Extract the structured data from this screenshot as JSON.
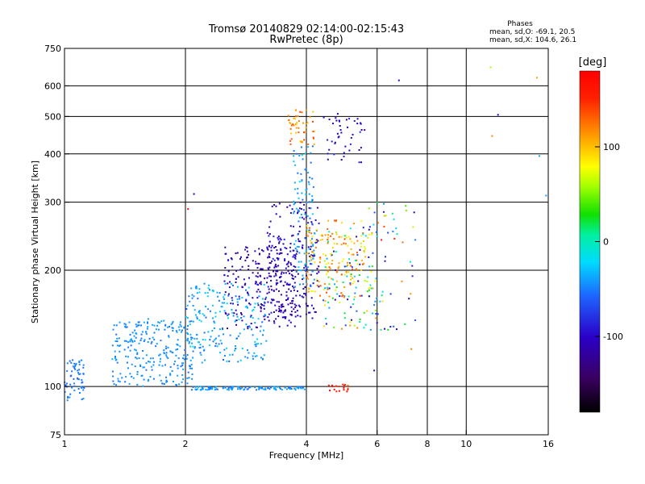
{
  "chart_data": {
    "type": "scatter",
    "title": "Tromsø 20140829 02:14:00-02:15:43",
    "subtitle": "RwPretec (8p)",
    "xlabel": "Frequency [MHz]",
    "ylabel": "Stationary phase Virtual Height [km]",
    "x_scale": "log",
    "y_scale": "log",
    "xlim": [
      1,
      16
    ],
    "ylim": [
      75,
      750
    ],
    "x_ticks": [
      1,
      2,
      4,
      6,
      8,
      10,
      16
    ],
    "y_ticks": [
      75,
      100,
      200,
      300,
      400,
      500,
      600,
      750
    ],
    "x_tick_labels": [
      "1",
      "2",
      "4",
      "6",
      "8",
      "10",
      "16"
    ],
    "y_tick_labels": [
      "75",
      "100",
      "200",
      "300",
      "400",
      "500",
      "600",
      "750"
    ],
    "grid": true,
    "grid_x": [
      2,
      4,
      6,
      8,
      10
    ],
    "grid_y": [
      100,
      200,
      300,
      400,
      500,
      600
    ],
    "phases_box": {
      "title": "Phases",
      "line_o": "mean, sd,O: -69.1, 20.5",
      "line_x": "mean, sd,X: 104.6, 26.1"
    },
    "colorbar": {
      "label": "[deg]",
      "range": [
        -180,
        180
      ],
      "ticks": [
        100,
        0,
        -100
      ],
      "tick_labels": [
        "100",
        "0",
        "-100"
      ]
    },
    "clusters": [
      {
        "f": [
          1.0,
          1.12
        ],
        "h": [
          92,
          118
        ],
        "phase": [
          -60,
          -40
        ],
        "n": 60
      },
      {
        "f": [
          1.3,
          2.1
        ],
        "h": [
          100,
          150
        ],
        "phase": [
          -55,
          -35
        ],
        "n": 260
      },
      {
        "f": [
          2.0,
          3.2
        ],
        "h": [
          115,
          185
        ],
        "phase": [
          -60,
          -20
        ],
        "n": 220
      },
      {
        "f": [
          2.5,
          3.8
        ],
        "h": [
          140,
          230
        ],
        "phase": [
          -130,
          -90
        ],
        "n": 230
      },
      {
        "f": [
          3.2,
          4.3
        ],
        "h": [
          150,
          300
        ],
        "phase": [
          -125,
          -85
        ],
        "n": 200
      },
      {
        "f": [
          3.7,
          4.2
        ],
        "h": [
          180,
          420
        ],
        "phase": [
          -60,
          -20
        ],
        "n": 110
      },
      {
        "f": [
          4.0,
          5.6
        ],
        "h": [
          170,
          270
        ],
        "phase": [
          70,
          140
        ],
        "n": 140
      },
      {
        "f": [
          4.4,
          6.0
        ],
        "h": [
          140,
          260
        ],
        "phase": [
          -120,
          120
        ],
        "n": 120
      },
      {
        "f": [
          3.6,
          4.2
        ],
        "h": [
          420,
          520
        ],
        "phase": [
          90,
          150
        ],
        "n": 50
      },
      {
        "f": [
          4.4,
          5.6
        ],
        "h": [
          380,
          510
        ],
        "phase": [
          -120,
          -80
        ],
        "n": 45
      },
      {
        "f": [
          2.0,
          4.0
        ],
        "h": [
          98,
          100
        ],
        "phase": [
          -60,
          -30
        ],
        "n": 120
      },
      {
        "f": [
          4.5,
          5.1
        ],
        "h": [
          97,
          102
        ],
        "phase": [
          140,
          170
        ],
        "n": 18
      },
      {
        "f": [
          5.6,
          7.5
        ],
        "h": [
          140,
          300
        ],
        "phase": [
          -120,
          160
        ],
        "n": 60
      }
    ],
    "extra_points": [
      {
        "f": 2.1,
        "h": 315,
        "phase": -120
      },
      {
        "f": 2.03,
        "h": 288,
        "phase": 170
      },
      {
        "f": 6.8,
        "h": 620,
        "phase": -100
      },
      {
        "f": 11.5,
        "h": 670,
        "phase": 60
      },
      {
        "f": 12.0,
        "h": 505,
        "phase": -100
      },
      {
        "f": 11.6,
        "h": 445,
        "phase": 120
      },
      {
        "f": 15.0,
        "h": 630,
        "phase": 110
      },
      {
        "f": 15.2,
        "h": 395,
        "phase": -40
      },
      {
        "f": 15.8,
        "h": 312,
        "phase": -40
      },
      {
        "f": 7.3,
        "h": 125,
        "phase": 120
      },
      {
        "f": 5.9,
        "h": 110,
        "phase": -100
      }
    ]
  }
}
